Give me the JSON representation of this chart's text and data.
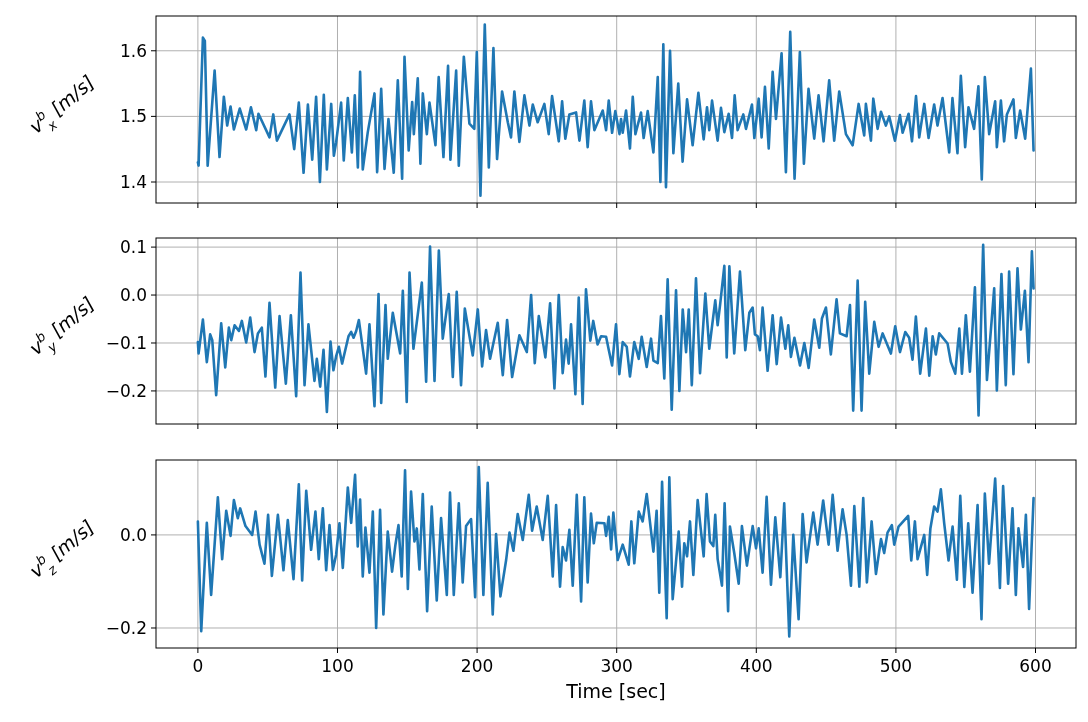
{
  "chart_data": [
    {
      "type": "line",
      "ylabel": "v$^{b}$$_{x}$ [m/s]",
      "xlim": [
        -30,
        629
      ],
      "xticks": [
        0,
        100,
        200,
        300,
        400,
        500,
        600
      ],
      "ylim": [
        1.368,
        1.653
      ],
      "yticks": [
        {
          "value": 1.4,
          "label": "1.4"
        },
        {
          "value": 1.5,
          "label": "1.5"
        },
        {
          "value": 1.6,
          "label": "1.6"
        }
      ],
      "grid": true,
      "tick_labels": "y",
      "series": [
        {
          "color": "#1f77b4",
          "x": [
            0,
            0.5,
            3.6,
            5,
            7,
            12,
            15.5,
            18.6,
            21,
            23.4,
            25.8,
            30,
            34.6,
            38,
            41.8,
            43.4,
            51.3,
            54,
            56.6,
            65.6,
            69,
            72.3,
            75.7,
            78.8,
            81.9,
            84.7,
            87.4,
            90.2,
            92.4,
            95.5,
            97.4,
            99,
            102.6,
            104.5,
            107.4,
            110.3,
            112.4,
            114.6,
            116.2,
            118.1,
            121.7,
            126.5,
            128.4,
            131.3,
            133.7,
            136.5,
            140.3,
            143.2,
            146.3,
            148,
            151,
            153.5,
            154.7,
            157.5,
            159.4,
            161.1,
            164,
            165.9,
            170.2,
            172.5,
            175.9,
            179.2,
            180.9,
            185,
            186.9,
            190.5,
            194.5,
            198,
            199.8,
            202.4,
            205.5,
            208.4,
            211.7,
            214.3,
            217.9,
            222,
            224.3,
            226.7,
            230.3,
            233.9,
            237.5,
            239.9,
            243.4,
            248.2,
            251.3,
            253.7,
            258.5,
            260.9,
            263.2,
            266.1,
            270.9,
            273.3,
            276.8,
            279.2,
            281.6,
            284,
            290,
            292.4,
            294.3,
            296.7,
            299,
            302,
            303.1,
            304.3,
            306.7,
            309.5,
            311.5,
            313.4,
            317.4,
            319.3,
            322.2,
            326.3,
            329.4,
            331.3,
            333.4,
            335.3,
            338.2,
            340.6,
            344.1,
            347.2,
            350.4,
            354.4,
            358.5,
            362.3,
            364.7,
            366.3,
            368.3,
            372.3,
            374.7,
            377.1,
            380.2,
            382.6,
            384.5,
            386.6,
            390.7,
            392.6,
            396.9,
            398.6,
            401.7,
            403.8,
            406.2,
            408.9,
            411.7,
            414.1,
            418.1,
            421.2,
            424.3,
            427.4,
            431.2,
            434.1,
            437.4,
            441.5,
            444.6,
            448.2,
            452.2,
            455.8,
            459.4,
            464.2,
            469,
            473.3,
            477.3,
            478.5,
            482.1,
            483.8,
            486.9,
            489.3,
            492.8,
            495.2,
            499.3,
            502.9,
            504.8,
            509.1,
            511.5,
            514.4,
            516.7,
            520.3,
            523.4,
            527.4,
            529.8,
            533.4,
            538.2,
            540.5,
            544.1,
            546.5,
            549.6,
            552,
            556,
            559.1,
            561.5,
            563.7,
            566.8,
            571.1,
            572.3,
            575.2,
            577.5,
            579.5,
            584.2,
            585.9,
            589,
            592.6,
            596.7,
            598.6
          ],
          "values": [
            1.43,
            1.425,
            1.62,
            1.615,
            1.425,
            1.57,
            1.438,
            1.53,
            1.486,
            1.515,
            1.48,
            1.512,
            1.48,
            1.514,
            1.479,
            1.504,
            1.468,
            1.503,
            1.463,
            1.503,
            1.45,
            1.521,
            1.414,
            1.518,
            1.434,
            1.53,
            1.4,
            1.533,
            1.419,
            1.519,
            1.44,
            1.46,
            1.521,
            1.433,
            1.528,
            1.445,
            1.532,
            1.422,
            1.568,
            1.419,
            1.476,
            1.535,
            1.415,
            1.542,
            1.42,
            1.496,
            1.414,
            1.555,
            1.405,
            1.591,
            1.448,
            1.522,
            1.473,
            1.558,
            1.428,
            1.535,
            1.473,
            1.521,
            1.456,
            1.56,
            1.438,
            1.577,
            1.434,
            1.57,
            1.425,
            1.591,
            1.489,
            1.481,
            1.598,
            1.379,
            1.64,
            1.422,
            1.604,
            1.435,
            1.538,
            1.491,
            1.468,
            1.538,
            1.461,
            1.532,
            1.486,
            1.518,
            1.491,
            1.519,
            1.473,
            1.531,
            1.462,
            1.523,
            1.466,
            1.503,
            1.506,
            1.463,
            1.524,
            1.453,
            1.523,
            1.479,
            1.509,
            1.479,
            1.524,
            1.475,
            1.508,
            1.473,
            1.496,
            1.475,
            1.509,
            1.451,
            1.53,
            1.473,
            1.506,
            1.467,
            1.508,
            1.445,
            1.56,
            1.4,
            1.61,
            1.392,
            1.6,
            1.444,
            1.55,
            1.431,
            1.526,
            1.456,
            1.536,
            1.465,
            1.514,
            1.479,
            1.524,
            1.463,
            1.513,
            1.476,
            1.504,
            1.467,
            1.532,
            1.479,
            1.503,
            1.481,
            1.518,
            1.467,
            1.527,
            1.468,
            1.545,
            1.451,
            1.568,
            1.496,
            1.596,
            1.415,
            1.629,
            1.405,
            1.598,
            1.428,
            1.542,
            1.466,
            1.532,
            1.462,
            1.555,
            1.463,
            1.538,
            1.473,
            1.456,
            1.519,
            1.471,
            1.519,
            1.463,
            1.527,
            1.481,
            1.507,
            1.486,
            1.5,
            1.463,
            1.502,
            1.475,
            1.504,
            1.462,
            1.531,
            1.468,
            1.519,
            1.467,
            1.518,
            1.486,
            1.528,
            1.445,
            1.528,
            1.444,
            1.562,
            1.453,
            1.514,
            1.481,
            1.546,
            1.404,
            1.56,
            1.473,
            1.523,
            1.453,
            1.524,
            1.462,
            1.503,
            1.526,
            1.467,
            1.509,
            1.466,
            1.573,
            1.448
          ]
        }
      ]
    },
    {
      "type": "line",
      "ylabel": "v$^{b}$$_{y}$ [m/s]",
      "xlim": [
        -30,
        629
      ],
      "xticks": [
        0,
        100,
        200,
        300,
        400,
        500,
        600
      ],
      "ylim": [
        -0.269,
        0.119
      ],
      "yticks": [
        {
          "value": -0.2,
          "label": "−0.2"
        },
        {
          "value": -0.1,
          "label": "−0.1"
        },
        {
          "value": 0,
          "label": "0.0"
        },
        {
          "value": 0.1,
          "label": "0.1"
        }
      ],
      "grid": true,
      "tick_labels": "y",
      "series": [
        {
          "color": "#1f77b4",
          "x": [
            0,
            0.5,
            3.6,
            6.4,
            8.8,
            10.3,
            13.1,
            16.7,
            19.6,
            22.2,
            23.9,
            26.3,
            29.4,
            31.5,
            34.6,
            37.5,
            40.6,
            43,
            45.8,
            48.4,
            51.3,
            55.4,
            58.5,
            63,
            66.6,
            70.4,
            73.5,
            76.4,
            79.2,
            83.5,
            85.2,
            87.6,
            90,
            92.4,
            95,
            97.1,
            99,
            101,
            103.3,
            107.9,
            109.8,
            111.5,
            113.4,
            115.3,
            117.7,
            120.5,
            122.9,
            126.5,
            129.4,
            131.3,
            134.4,
            136,
            139.6,
            144.9,
            146.8,
            149.6,
            151.6,
            154.4,
            160.4,
            163.5,
            166.3,
            169.5,
            172.6,
            175.4,
            179.7,
            182.6,
            185.4,
            188.5,
            191.2,
            196.9,
            200.5,
            203.6,
            206.4,
            209.3,
            214.8,
            218.4,
            221.5,
            225.1,
            230.3,
            235.6,
            238.7,
            241.3,
            244.2,
            248.9,
            252.3,
            255.4,
            258.5,
            261.3,
            263.7,
            265.6,
            267.3,
            270.4,
            272.8,
            275.6,
            278,
            281.1,
            283.2,
            286.3,
            288.8,
            292.4,
            294.3,
            296.7,
            299.5,
            301.9,
            304.3,
            307.2,
            309.5,
            312.6,
            315.8,
            317.9,
            321.5,
            324.6,
            326.3,
            329.4,
            331.7,
            334.1,
            336.5,
            339.4,
            342.5,
            344.9,
            347.3,
            349.7,
            351.6,
            353.8,
            356.8,
            359.7,
            363.5,
            366.3,
            370.6,
            372.3,
            374.2,
            377.1,
            378.8,
            380.7,
            384.2,
            388.3,
            392.1,
            395,
            397.4,
            399,
            401,
            402.6,
            404.5,
            408.1,
            411.7,
            414.6,
            417.7,
            420.8,
            422.9,
            424.8,
            427.3,
            431.3,
            434.4,
            437.5,
            441.5,
            445.1,
            447,
            449.9,
            453.4,
            457.5,
            459.9,
            464.7,
            467.1,
            469.4,
            472.6,
            475.4,
            478,
            480.9,
            484.5,
            487.6,
            490.5,
            496.4,
            499.5,
            502.9,
            506.7,
            509.5,
            511.9,
            514.3,
            517.4,
            521.5,
            523.9,
            526.3,
            528.6,
            531,
            537,
            539.4,
            542.5,
            545.4,
            547.3,
            550.1,
            553,
            556.6,
            559.2,
            562.5,
            565.2,
            570.4,
            572.3,
            575.6,
            578.7,
            581.1,
            584.2,
            587.1,
            589.5,
            592.4,
            595,
            597.4,
            598.6
          ],
          "values": [
            -0.098,
            -0.122,
            -0.051,
            -0.14,
            -0.082,
            -0.094,
            -0.209,
            -0.059,
            -0.151,
            -0.068,
            -0.094,
            -0.063,
            -0.075,
            -0.054,
            -0.099,
            -0.047,
            -0.119,
            -0.08,
            -0.068,
            -0.17,
            -0.016,
            -0.193,
            -0.044,
            -0.185,
            -0.042,
            -0.211,
            0.047,
            -0.188,
            -0.061,
            -0.179,
            -0.133,
            -0.191,
            -0.114,
            -0.244,
            -0.097,
            -0.157,
            -0.128,
            -0.108,
            -0.143,
            -0.086,
            -0.077,
            -0.089,
            -0.075,
            -0.052,
            -0.103,
            -0.164,
            -0.061,
            -0.232,
            0.002,
            -0.225,
            -0.021,
            -0.133,
            -0.037,
            -0.122,
            0.009,
            -0.223,
            0.047,
            -0.112,
            0.026,
            -0.181,
            0.101,
            -0.179,
            0.093,
            -0.091,
            0.002,
            -0.171,
            0.007,
            -0.188,
            -0.028,
            -0.126,
            -0.03,
            -0.149,
            -0.073,
            -0.133,
            -0.058,
            -0.167,
            -0.052,
            -0.171,
            -0.084,
            -0.119,
            0,
            -0.142,
            -0.044,
            -0.13,
            -0.017,
            -0.195,
            0,
            -0.163,
            -0.093,
            -0.143,
            -0.061,
            -0.207,
            -0.005,
            -0.227,
            0.012,
            -0.095,
            -0.054,
            -0.103,
            -0.086,
            -0.087,
            -0.114,
            -0.147,
            -0.061,
            -0.165,
            -0.098,
            -0.108,
            -0.17,
            -0.098,
            -0.133,
            -0.087,
            -0.15,
            -0.091,
            -0.137,
            -0.142,
            -0.044,
            -0.174,
            0.033,
            -0.239,
            0.01,
            -0.2,
            -0.03,
            -0.119,
            -0.03,
            -0.188,
            0.035,
            -0.163,
            0.003,
            -0.112,
            -0.011,
            -0.063,
            -0.017,
            0.061,
            -0.13,
            0.06,
            -0.122,
            0.049,
            -0.115,
            -0.037,
            -0.026,
            -0.082,
            -0.086,
            -0.115,
            -0.026,
            -0.158,
            -0.042,
            -0.144,
            -0.047,
            -0.112,
            -0.063,
            -0.129,
            -0.089,
            -0.147,
            -0.1,
            -0.152,
            -0.051,
            -0.11,
            -0.049,
            -0.026,
            -0.124,
            -0.009,
            -0.08,
            -0.086,
            -0.021,
            -0.241,
            0.03,
            -0.241,
            -0.014,
            -0.164,
            -0.056,
            -0.108,
            -0.08,
            -0.122,
            -0.065,
            -0.119,
            -0.077,
            -0.089,
            -0.135,
            -0.045,
            -0.164,
            -0.07,
            -0.168,
            -0.086,
            -0.124,
            -0.08,
            -0.101,
            -0.14,
            -0.164,
            -0.07,
            -0.164,
            -0.042,
            -0.16,
            0.016,
            -0.251,
            0.105,
            -0.177,
            0.014,
            -0.199,
            0.044,
            -0.188,
            0.049,
            -0.165,
            0.056,
            -0.072,
            0.009,
            -0.14,
            0.091,
            0.014
          ]
        }
      ]
    },
    {
      "type": "line",
      "ylabel": "v$^{b}$$_{z}$ [m/s]",
      "xlabel": "Time [sec]",
      "xlim": [
        -30,
        629
      ],
      "xticks": [
        0,
        100,
        200,
        300,
        400,
        500,
        600
      ],
      "ylim": [
        -0.243,
        0.161
      ],
      "yticks": [
        {
          "value": -0.2,
          "label": "−0.2"
        },
        {
          "value": 0,
          "label": "0.0"
        }
      ],
      "grid": true,
      "series": [
        {
          "color": "#1f77b4",
          "x": [
            0,
            2.4,
            6.4,
            9.5,
            14.3,
            17.4,
            20.3,
            23.4,
            25.8,
            28.6,
            30.3,
            34.1,
            38.9,
            41.3,
            44.2,
            47.7,
            50.3,
            53,
            57.3,
            61.3,
            64.4,
            68.5,
            72.3,
            74.7,
            77.6,
            81.1,
            84.2,
            86.6,
            89.5,
            91.9,
            94.3,
            96.7,
            99,
            101.4,
            103.8,
            107.4,
            109.8,
            112.6,
            114.5,
            116.2,
            118.1,
            120,
            122.9,
            125.3,
            127.7,
            130.5,
            132.9,
            136,
            139.1,
            141.5,
            143.7,
            146,
            148.4,
            150.4,
            152.7,
            155.1,
            156.8,
            158.7,
            161.1,
            164.2,
            167.5,
            171.1,
            174.2,
            178.3,
            180.6,
            183.3,
            186.9,
            189.7,
            192.1,
            195.7,
            198.6,
            201.2,
            204.5,
            207.6,
            211.2,
            213.6,
            216.7,
            220.8,
            223.2,
            226,
            229.1,
            232.7,
            237,
            239.4,
            242.7,
            247,
            250.6,
            254.2,
            256.6,
            259.4,
            261.3,
            263.7,
            266.1,
            268.5,
            271.4,
            274.5,
            276.8,
            279.2,
            281.6,
            283.6,
            285.7,
            291.2,
            292.4,
            294.3,
            296,
            297.6,
            300.7,
            304.3,
            308.6,
            310.5,
            312.6,
            315.8,
            318.6,
            321.5,
            326.3,
            328.6,
            330.5,
            332.5,
            335.8,
            337.7,
            340.1,
            344.4,
            346.8,
            348.4,
            350.4,
            352.5,
            354.9,
            358,
            362.3,
            364.4,
            366.8,
            369.2,
            370.6,
            372.3,
            375.4,
            377.3,
            379.8,
            381.1,
            384.2,
            387.4,
            389.7,
            393.3,
            397.4,
            399.8,
            401.7,
            404.5,
            407.4,
            410.5,
            413.6,
            417.2,
            420,
            423.6,
            426.5,
            430.3,
            433.2,
            436,
            440.8,
            443.9,
            447.9,
            451.8,
            454.7,
            458.2,
            461.8,
            464.7,
            467.8,
            470.2,
            473.8,
            476.6,
            479.2,
            482.6,
            485.7,
            489.3,
            491.6,
            494,
            497.1,
            498.8,
            501.9,
            508.8,
            511,
            513.6,
            515.5,
            520.3,
            522.4,
            524.7,
            527.4,
            529.8,
            532.2,
            534.6,
            537.7,
            540.6,
            543.7,
            546.1,
            549,
            551.8,
            554.9,
            558.5,
            561.3,
            563.7,
            566.7,
            571.1,
            574.5,
            576.8,
            580.4,
            583.5,
            585.9,
            587.8,
            591.1,
            593.1,
            595.4,
            598.6
          ],
          "values": [
            0.029,
            -0.207,
            0.026,
            -0.129,
            0.081,
            -0.052,
            0.052,
            -0.002,
            0.075,
            0.036,
            0.057,
            0.019,
            0,
            0.05,
            -0.021,
            -0.062,
            0.043,
            -0.088,
            0.043,
            -0.076,
            0.032,
            -0.095,
            0.109,
            -0.098,
            0.095,
            -0.032,
            0.05,
            -0.052,
            0.057,
            -0.076,
            0.021,
            -0.075,
            -0.043,
            0.025,
            -0.071,
            0.102,
            0.026,
            0.129,
            -0.025,
            0.076,
            -0.089,
            0.016,
            -0.081,
            0.05,
            -0.2,
            0.054,
            -0.171,
            0.007,
            -0.079,
            -0.021,
            0.021,
            -0.089,
            0.139,
            -0.116,
            0.093,
            -0.014,
            0.014,
            -0.074,
            0.088,
            -0.164,
            0.061,
            -0.141,
            0.036,
            -0.129,
            0.091,
            -0.129,
            0.068,
            -0.102,
            0.019,
            0.034,
            -0.134,
            0.146,
            -0.129,
            0.112,
            -0.171,
            0.002,
            -0.132,
            -0.054,
            0.005,
            -0.034,
            0.045,
            -0.011,
            0.086,
            0.009,
            0.061,
            -0.011,
            0.084,
            -0.089,
            0.064,
            -0.111,
            -0.026,
            -0.055,
            0.011,
            -0.109,
            0.086,
            -0.143,
            0.081,
            -0.102,
            0.046,
            -0.018,
            0.026,
            0.025,
            -0.002,
            0.039,
            -0.031,
            0.048,
            -0.054,
            -0.021,
            -0.064,
            0.029,
            -0.061,
            0.05,
            0.029,
            0.088,
            -0.036,
            0.052,
            -0.124,
            0.114,
            -0.179,
            0.124,
            -0.138,
            0.007,
            -0.111,
            -0.018,
            -0.046,
            0.029,
            -0.086,
            0.075,
            -0.046,
            0.088,
            -0.014,
            -0.024,
            0.043,
            -0.052,
            -0.109,
            0.068,
            -0.164,
            0.018,
            -0.039,
            -0.105,
            0.019,
            -0.066,
            0.019,
            -0.029,
            0.014,
            -0.081,
            0.082,
            -0.107,
            0.038,
            -0.091,
            0.068,
            -0.218,
            0,
            -0.181,
            0.045,
            -0.059,
            0.048,
            -0.021,
            0.074,
            -0.021,
            0.086,
            -0.034,
            0.055,
            0,
            -0.109,
            0.062,
            -0.111,
            0.079,
            -0.102,
            0.029,
            -0.084,
            -0.009,
            -0.039,
            0.005,
            0.021,
            -0.021,
            0.018,
            0.041,
            -0.055,
            0.029,
            -0.052,
            0,
            -0.086,
            0.014,
            0.061,
            0.05,
            0.098,
            0.025,
            -0.055,
            0.018,
            -0.096,
            0.084,
            -0.112,
            0.025,
            -0.124,
            0.064,
            -0.181,
            0.089,
            -0.062,
            0.121,
            -0.114,
            0.105,
            -0.105,
            0.057,
            -0.129,
            0.014,
            -0.069,
            0.043,
            -0.159,
            0.079
          ]
        }
      ]
    }
  ]
}
